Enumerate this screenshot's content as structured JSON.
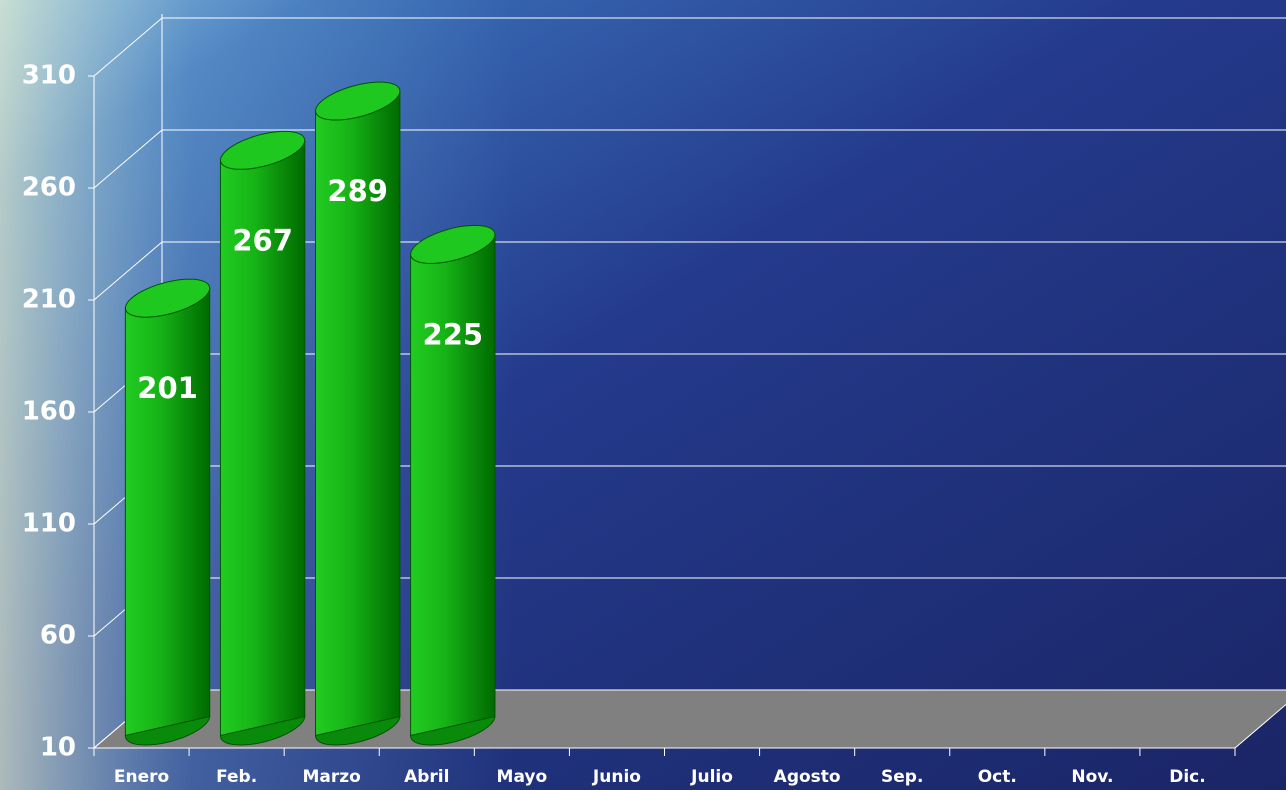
{
  "chart_data": {
    "type": "bar",
    "categories": [
      "Enero",
      "Feb.",
      "Marzo",
      "Abril",
      "Mayo",
      "Junio",
      "Julio",
      "Agosto",
      "Sep.",
      "Oct.",
      "Nov.",
      "Dic."
    ],
    "values": [
      201,
      267,
      289,
      225,
      null,
      null,
      null,
      null,
      null,
      null,
      null,
      null
    ],
    "color": "#19c219",
    "ylim": [
      10,
      310
    ],
    "yticks": [
      10,
      60,
      110,
      160,
      210,
      260,
      310
    ],
    "grid": true
  }
}
